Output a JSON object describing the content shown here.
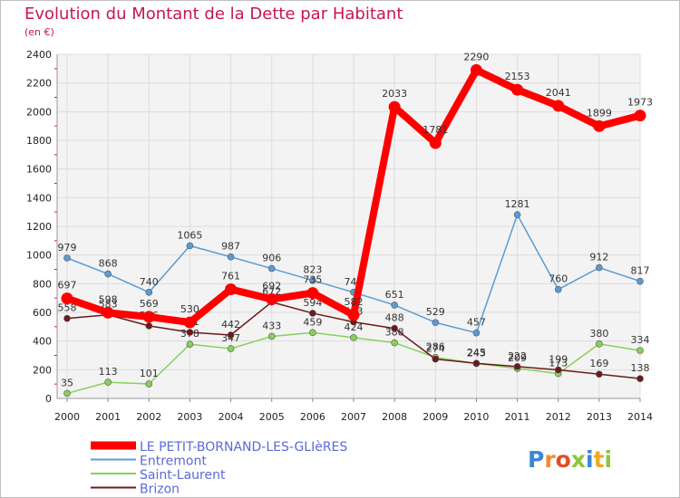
{
  "title": "Evolution du Montant de la Dette par Habitant",
  "subtitle": "(en €)",
  "brand": "Proxiti",
  "chart_data": {
    "type": "line",
    "x": [
      "2000",
      "2001",
      "2002",
      "2003",
      "2004",
      "2005",
      "2006",
      "2007",
      "2008",
      "2009",
      "2010",
      "2011",
      "2012",
      "2013",
      "2014"
    ],
    "ylim": [
      0,
      2400
    ],
    "yticks": [
      0,
      200,
      400,
      600,
      800,
      1000,
      1200,
      1400,
      1600,
      1800,
      2000,
      2200,
      2400
    ],
    "grid": true,
    "legend_position": "bottom-left",
    "series": [
      {
        "name": "Entremont",
        "color": "#5b9bd5",
        "values": [
          979,
          868,
          740,
          1065,
          987,
          906,
          823,
          740,
          651,
          529,
          457,
          1281,
          760,
          912,
          817
        ]
      },
      {
        "name": "Saint-Laurent",
        "color": "#88d05a",
        "values": [
          35,
          113,
          101,
          378,
          347,
          433,
          459,
          424,
          388,
          286,
          243,
          209,
          173,
          380,
          334
        ]
      },
      {
        "name": "Brizon",
        "color": "#6b1a1a",
        "values": [
          558,
          583,
          506,
          461,
          442,
          672,
          594,
          533,
          488,
          274,
          245,
          222,
          199,
          169,
          138
        ]
      },
      {
        "name": "LE PETIT-BORNAND-LES-GLIèRES",
        "color": "#ff0000",
        "values": [
          697,
          598,
          569,
          530,
          761,
          692,
          735,
          582,
          2033,
          1781,
          2290,
          2153,
          2041,
          1899,
          1973
        ]
      }
    ]
  }
}
